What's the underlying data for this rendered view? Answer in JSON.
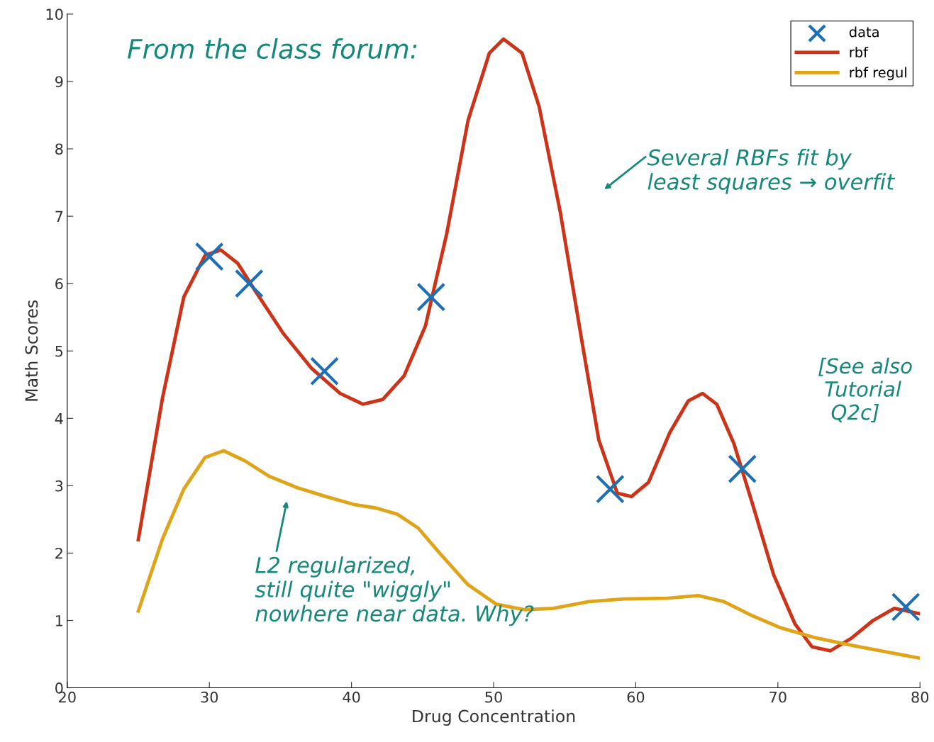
{
  "chart_data": {
    "type": "line",
    "xlabel": "Drug Concentration",
    "ylabel": "Math Scores",
    "xlim": [
      20,
      80
    ],
    "ylim": [
      0,
      10
    ],
    "xticks": [
      20,
      30,
      40,
      50,
      60,
      70,
      80
    ],
    "yticks": [
      0,
      1,
      2,
      3,
      4,
      5,
      6,
      7,
      8,
      9,
      10
    ],
    "grid": false,
    "legend": "top right",
    "series": [
      {
        "name": "data",
        "type": "scatter",
        "marker": "cross",
        "color": "#1f6fb5",
        "x": [
          30,
          32.8,
          38.1,
          45.6,
          58.2,
          67.5,
          79.0
        ],
        "values": [
          6.4,
          6.0,
          4.7,
          5.8,
          2.95,
          3.25,
          1.2
        ]
      },
      {
        "name": "rbf",
        "color": "#cc3318",
        "x": [
          25.0,
          26.7,
          28.2,
          29.7,
          30.8,
          32.0,
          33.2,
          35.2,
          37.2,
          39.2,
          40.8,
          42.2,
          43.7,
          45.2,
          46.7,
          48.2,
          49.7,
          50.7,
          52.0,
          53.2,
          54.7,
          56.2,
          57.4,
          58.7,
          59.7,
          60.9,
          62.4,
          63.7,
          64.7,
          65.7,
          66.9,
          68.2,
          69.7,
          71.2,
          72.4,
          73.7,
          75.2,
          76.7,
          78.2,
          80.0
        ],
        "values": [
          2.2,
          4.3,
          5.8,
          6.42,
          6.5,
          6.3,
          5.9,
          5.26,
          4.74,
          4.37,
          4.21,
          4.28,
          4.63,
          5.37,
          6.74,
          8.42,
          9.42,
          9.63,
          9.42,
          8.63,
          7.05,
          5.16,
          3.68,
          2.89,
          2.84,
          3.05,
          3.79,
          4.26,
          4.37,
          4.21,
          3.63,
          2.74,
          1.68,
          0.95,
          0.61,
          0.55,
          0.74,
          1.0,
          1.18,
          1.1
        ]
      },
      {
        "name": "rbf regul",
        "color": "#e0a418",
        "x": [
          25.0,
          26.7,
          28.2,
          29.7,
          31.0,
          32.5,
          34.2,
          36.2,
          38.2,
          40.2,
          41.7,
          43.2,
          44.7,
          46.2,
          48.2,
          50.2,
          52.2,
          54.2,
          56.7,
          59.2,
          62.2,
          64.4,
          66.2,
          68.2,
          70.2,
          72.7,
          75.2,
          77.7,
          80.0
        ],
        "values": [
          1.14,
          2.21,
          2.95,
          3.42,
          3.52,
          3.37,
          3.14,
          2.97,
          2.84,
          2.72,
          2.67,
          2.58,
          2.37,
          2.0,
          1.53,
          1.24,
          1.16,
          1.18,
          1.28,
          1.32,
          1.33,
          1.37,
          1.28,
          1.07,
          0.89,
          0.74,
          0.63,
          0.53,
          0.44
        ]
      }
    ],
    "annotations": [
      "From the class forum:",
      "Several RBFs fit by\nleast squares → overfit",
      "[See also\n Tutorial\n  Q2c]",
      "L2 regularized,\nstill quite \"wiggly\"\nnowhere near data. Why?"
    ]
  }
}
